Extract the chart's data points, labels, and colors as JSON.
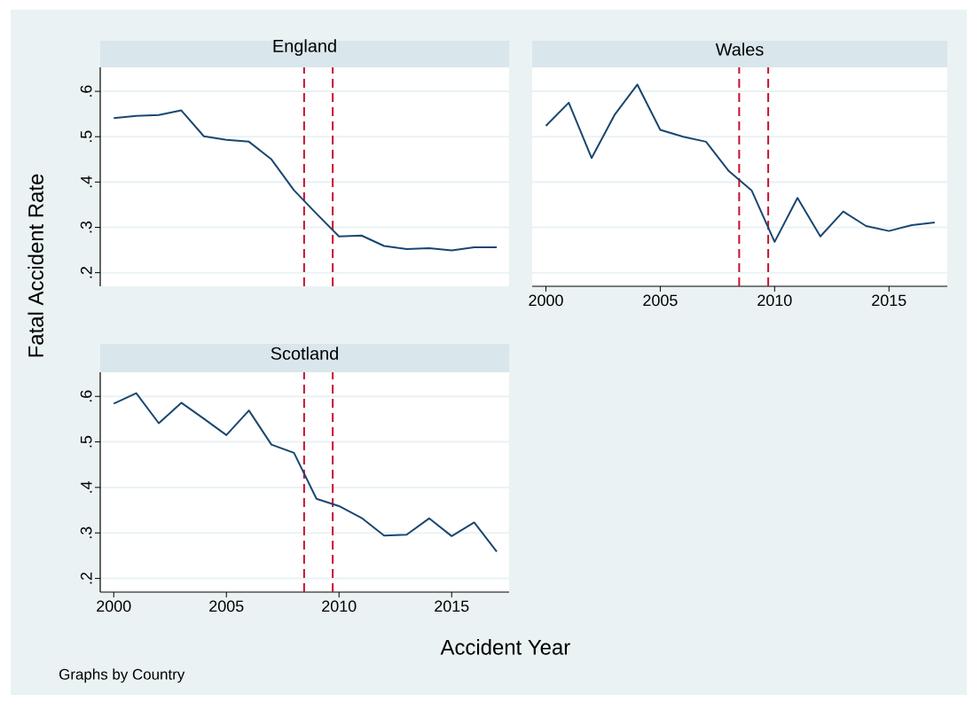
{
  "chart_data": [
    {
      "type": "line",
      "title": "England",
      "x": [
        2000,
        2001,
        2002,
        2003,
        2004,
        2005,
        2006,
        2007,
        2008,
        2009,
        2010,
        2011,
        2012,
        2013,
        2014,
        2015,
        2016,
        2017
      ],
      "series": [
        {
          "color": "#1a476f",
          "values": [
            0.541,
            0.546,
            0.548,
            0.558,
            0.501,
            0.493,
            0.489,
            0.45,
            0.382,
            0.33,
            0.28,
            0.282,
            0.259,
            0.252,
            0.254,
            0.249,
            0.256,
            0.256
          ]
        }
      ],
      "xlim": [
        1999.4,
        2017.55
      ],
      "ylim": [
        0.17,
        0.653
      ],
      "yticks": [
        {
          "value": 0.2,
          "label": ".2"
        },
        {
          "value": 0.3,
          "label": ".3"
        },
        {
          "value": 0.4,
          "label": ".4"
        },
        {
          "value": 0.5,
          "label": ".5"
        },
        {
          "value": 0.6,
          "label": ".6"
        }
      ],
      "grid": "y",
      "tick_labels": "y",
      "ref_lines": [
        {
          "axis": "x",
          "value": 2008.45,
          "color": "#c8102e",
          "line_style": "dashed"
        },
        {
          "axis": "x",
          "value": 2009.72,
          "color": "#c8102e",
          "line_style": "dashed"
        }
      ]
    },
    {
      "type": "line",
      "title": "Wales",
      "x": [
        2000,
        2001,
        2002,
        2003,
        2004,
        2005,
        2006,
        2007,
        2008,
        2009,
        2010,
        2011,
        2012,
        2013,
        2014,
        2015,
        2016,
        2017
      ],
      "series": [
        {
          "color": "#1a476f",
          "values": [
            0.524,
            0.575,
            0.453,
            0.548,
            0.615,
            0.515,
            0.5,
            0.489,
            0.424,
            0.381,
            0.268,
            0.365,
            0.28,
            0.335,
            0.303,
            0.292,
            0.305,
            0.311
          ]
        }
      ],
      "xlim": [
        1999.4,
        2017.55
      ],
      "ylim": [
        0.17,
        0.653
      ],
      "xticks": [
        2000,
        2005,
        2010,
        2015
      ],
      "yticks": [
        {
          "value": 0.2,
          "label": null
        },
        {
          "value": 0.3,
          "label": null
        },
        {
          "value": 0.4,
          "label": null
        },
        {
          "value": 0.5,
          "label": null
        },
        {
          "value": 0.6,
          "label": null
        }
      ],
      "grid": "y",
      "tick_labels": "x",
      "ref_lines": [
        {
          "axis": "x",
          "value": 2008.45,
          "color": "#c8102e",
          "line_style": "dashed"
        },
        {
          "axis": "x",
          "value": 2009.72,
          "color": "#c8102e",
          "line_style": "dashed"
        }
      ]
    },
    {
      "type": "line",
      "title": "Scotland",
      "xlabel": "Accident Year",
      "ylabel": "Fatal Accident Rate",
      "annotations": [
        "Graphs by Country"
      ],
      "x": [
        2000,
        2001,
        2002,
        2003,
        2004,
        2005,
        2006,
        2007,
        2008,
        2009,
        2010,
        2011,
        2012,
        2013,
        2014,
        2015,
        2016,
        2017
      ],
      "series": [
        {
          "color": "#1a476f",
          "values": [
            0.584,
            0.607,
            0.541,
            0.586,
            0.551,
            0.515,
            0.569,
            0.494,
            0.476,
            0.375,
            0.359,
            0.333,
            0.294,
            0.296,
            0.332,
            0.293,
            0.323,
            0.259
          ]
        }
      ],
      "xlim": [
        1999.4,
        2017.55
      ],
      "ylim": [
        0.17,
        0.653
      ],
      "xticks": [
        2000,
        2005,
        2010,
        2015
      ],
      "yticks": [
        {
          "value": 0.2,
          "label": ".2"
        },
        {
          "value": 0.3,
          "label": ".3"
        },
        {
          "value": 0.4,
          "label": ".4"
        },
        {
          "value": 0.5,
          "label": ".5"
        },
        {
          "value": 0.6,
          "label": ".6"
        }
      ],
      "grid": "y",
      "ref_lines": [
        {
          "axis": "x",
          "value": 2008.45,
          "color": "#c8102e",
          "line_style": "dashed"
        },
        {
          "axis": "x",
          "value": 2009.72,
          "color": "#c8102e",
          "line_style": "dashed"
        }
      ]
    }
  ]
}
